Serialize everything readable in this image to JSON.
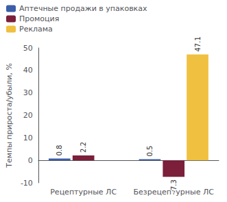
{
  "chart_data": {
    "type": "bar",
    "categories": [
      "Рецептурные ЛС",
      "Безрецептурные ЛС"
    ],
    "series": [
      {
        "name": "Аптечные продажи в упаковках",
        "color": "#3c5ea8",
        "values": [
          0.8,
          0.5
        ]
      },
      {
        "name": "Промоция",
        "color": "#7b1f3a",
        "values": [
          2.2,
          -7.3
        ]
      },
      {
        "name": "Реклама",
        "color": "#f0c040",
        "values": [
          null,
          47.1
        ]
      }
    ],
    "ylabel": "Темпы прироста/убыли, %",
    "ylim": [
      -10,
      50
    ],
    "yticks": [
      -10,
      0,
      10,
      20,
      30,
      40,
      50
    ],
    "legend": "upper left",
    "data_labels": true,
    "grid": false
  }
}
